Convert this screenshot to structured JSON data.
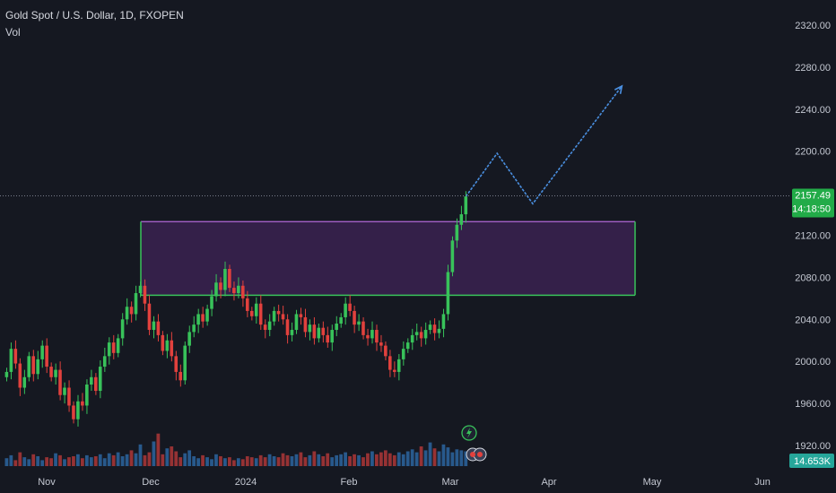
{
  "header": {
    "title": "Gold Spot / U.S. Dollar, 1D, FXOPEN",
    "volume_label": "Vol"
  },
  "price_tag": {
    "value": "2157.49",
    "countdown": "14:18:50",
    "color": "#22ab48"
  },
  "volume_tag": {
    "value": "14.653K",
    "color": "#26a69a"
  },
  "colors": {
    "background": "#151821",
    "up": "#38c25a",
    "down": "#e2413d",
    "vol_up": "#2f6fb0",
    "vol_down": "#c23b3b",
    "zone_fill": "#3a2250",
    "zone_border_top": "#b267d8",
    "zone_border": "#38c25a",
    "projection": "#4a8fe0",
    "price_line": "#7a7f8c"
  },
  "chart_data": {
    "type": "candlestick",
    "title": "Gold Spot / U.S. Dollar, 1D, FXOPEN",
    "y_axis": {
      "ticks": [
        "2320.00",
        "2280.00",
        "2240.00",
        "2200.00",
        "2160.00",
        "2120.00",
        "2080.00",
        "2040.00",
        "2000.00",
        "1960.00",
        "1920.00"
      ],
      "range": [
        1900,
        2340
      ]
    },
    "x_axis": {
      "ticks": [
        "Nov",
        "Dec",
        "2024",
        "Feb",
        "Mar",
        "Apr",
        "May",
        "Jun"
      ]
    },
    "close_series": [
      1990,
      2012,
      1998,
      1975,
      1985,
      2005,
      1988,
      2002,
      2015,
      1995,
      1985,
      1992,
      1968,
      1975,
      1958,
      1945,
      1962,
      1958,
      1978,
      1985,
      1972,
      1995,
      2005,
      2018,
      2008,
      2022,
      2040,
      2052,
      2045,
      2065,
      2072,
      2055,
      2030,
      2038,
      2025,
      2010,
      2020,
      2005,
      1990,
      1982,
      2015,
      2028,
      2035,
      2045,
      2038,
      2050,
      2062,
      2075,
      2068,
      2088,
      2070,
      2065,
      2072,
      2060,
      2048,
      2043,
      2055,
      2035,
      2030,
      2038,
      2048,
      2045,
      2040,
      2025,
      2030,
      2045,
      2042,
      2028,
      2035,
      2022,
      2032,
      2025,
      2018,
      2030,
      2036,
      2042,
      2055,
      2048,
      2035,
      2038,
      2025,
      2022,
      2030,
      2018,
      2015,
      2005,
      1992,
      1990,
      2002,
      2012,
      2018,
      2025,
      2028,
      2022,
      2030,
      2035,
      2027,
      2031,
      2045,
      2085,
      2115,
      2130,
      2140,
      2157
    ],
    "volume_series": [
      8,
      11,
      6,
      14,
      9,
      7,
      12,
      10,
      6,
      9,
      8,
      13,
      11,
      7,
      9,
      10,
      12,
      8,
      11,
      9,
      10,
      12,
      8,
      13,
      11,
      14,
      10,
      12,
      16,
      13,
      22,
      11,
      14,
      25,
      33,
      12,
      18,
      20,
      15,
      9,
      13,
      16,
      10,
      8,
      11,
      9,
      7,
      12,
      10,
      8,
      9,
      6,
      8,
      7,
      10,
      9,
      8,
      11,
      9,
      12,
      10,
      9,
      13,
      11,
      10,
      12,
      14,
      9,
      11,
      15,
      12,
      10,
      13,
      9,
      11,
      12,
      14,
      10,
      12,
      11,
      9,
      13,
      15,
      12,
      14,
      16,
      13,
      11,
      14,
      12,
      15,
      17,
      14,
      20,
      16,
      24,
      18,
      15,
      22,
      19,
      14,
      17,
      16,
      15
    ],
    "volume_range": [
      0,
      100
    ],
    "zone": {
      "low": 2063,
      "high": 2133
    },
    "projection_path": [
      {
        "bar": 103,
        "price": 2157
      },
      {
        "bar": 110,
        "price": 2198
      },
      {
        "bar": 118,
        "price": 2150
      },
      {
        "bar": 138,
        "price": 2262
      }
    ],
    "current_price": 2157.49,
    "current_volume": "14.653K"
  }
}
